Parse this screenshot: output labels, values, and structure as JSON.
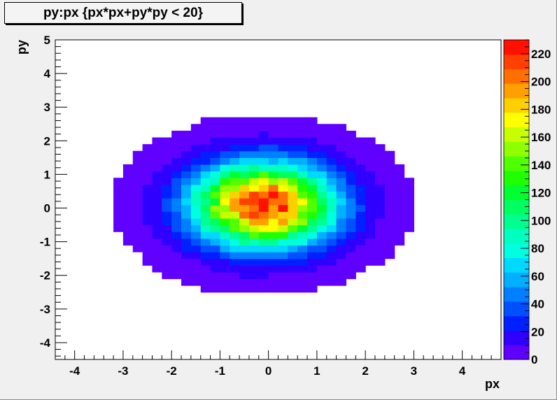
{
  "title": "py:px {px*px+py*py < 20}",
  "chart_data": {
    "type": "heatmap",
    "title": "py:px {px*px+py*py < 20}",
    "xlabel": "px",
    "ylabel": "py",
    "xlim": [
      -4.4,
      4.8
    ],
    "ylim": [
      -4.5,
      5
    ],
    "x_ticks": [
      -4,
      -3,
      -2,
      -1,
      0,
      1,
      2,
      3,
      4
    ],
    "y_ticks": [
      -4,
      -3,
      -2,
      -1,
      0,
      1,
      2,
      3,
      4,
      5
    ],
    "z_range": [
      0,
      230
    ],
    "colorbar_ticks": [
      0,
      20,
      40,
      60,
      80,
      100,
      120,
      140,
      160,
      180,
      200,
      220
    ],
    "colorbar_colors": [
      "#6000ff",
      "#3000ff",
      "#0020ff",
      "#0050ff",
      "#0080ff",
      "#00b0ff",
      "#00d8ff",
      "#00ffe0",
      "#00ffc0",
      "#00ff90",
      "#00ff60",
      "#00ff30",
      "#20ff00",
      "#50ff00",
      "#90ff00",
      "#c8ff00",
      "#ffff00",
      "#ffd000",
      "#ffa000",
      "#ff7000",
      "#ff4000",
      "#ff1000"
    ],
    "distribution": {
      "shape": "2D gaussian, peak near origin",
      "center": [
        -0.1,
        0.1
      ],
      "sigma_x": 1.0,
      "sigma_y": 0.85,
      "peak_value": 225
    }
  }
}
